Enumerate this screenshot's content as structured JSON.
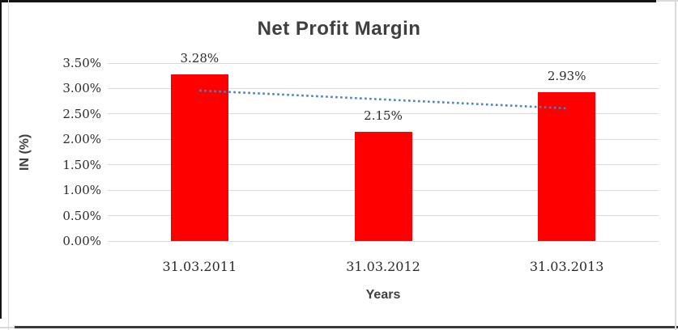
{
  "chart_data": {
    "type": "bar",
    "title": "Net Profit Margin",
    "xlabel": "Years",
    "ylabel": "IN (%)",
    "categories": [
      "31.03.2011",
      "31.03.2012",
      "31.03.2013"
    ],
    "series": [
      {
        "name": "Net Profit Margin",
        "values": [
          3.28,
          2.15,
          2.93
        ],
        "color": "#FF0000"
      }
    ],
    "data_labels": [
      "3.28%",
      "2.15%",
      "2.93%"
    ],
    "y_ticks": {
      "values": [
        0,
        0.5,
        1.0,
        1.5,
        2.0,
        2.5,
        3.0,
        3.5
      ],
      "labels": [
        "0.00%",
        "0.50%",
        "1.00%",
        "1.50%",
        "2.00%",
        "2.50%",
        "3.00%",
        "3.50%"
      ]
    },
    "ylim": [
      0,
      3.5
    ],
    "y_step": 0.5,
    "grid": true,
    "legend": "none",
    "trendline": {
      "type": "linear",
      "style": "dotted",
      "color": "#4F81BD",
      "start_value": 2.96,
      "end_value": 2.61,
      "from_category_index": 0,
      "to_category_index": 2
    },
    "colors": {
      "bar": "#FF0000",
      "gridline": "#D9D9D9",
      "title_text": "#3F3F3F",
      "number_text": "#2B2B2B",
      "frame_black": "#141414",
      "frame_gray": "#D9D9D9",
      "background": "#FFFFFF"
    }
  }
}
